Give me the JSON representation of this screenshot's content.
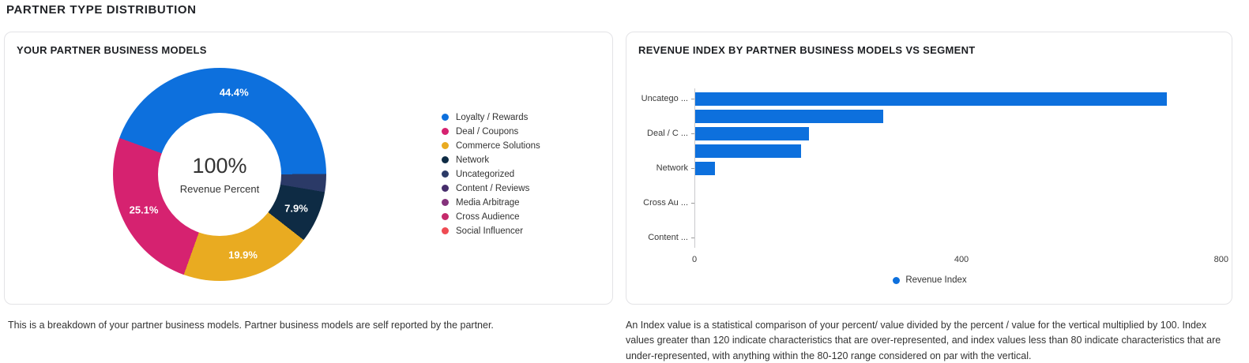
{
  "page": {
    "title": "PARTNER TYPE DISTRIBUTION"
  },
  "colors": {
    "accent_blue": "#0d70dd",
    "card_border": "#e3e3e6",
    "axis_gray": "#c9c9cc"
  },
  "left_card": {
    "title": "YOUR PARTNER BUSINESS MODELS",
    "description": "This is a breakdown of your partner business models. Partner business models are self reported by the partner."
  },
  "right_card": {
    "title": "REVENUE INDEX BY PARTNER BUSINESS MODELS VS SEGMENT",
    "description": "An Index value is a statistical comparison of your percent/ value divided by the percent / value for the vertical multiplied by 100. Index values greater than 120 indicate characteristics that are over-represented, and index values less than 80 indicate characteristics that are under-represented, with anything within the 80-120 range considered on par with the vertical."
  },
  "chart_data": [
    {
      "type": "pie",
      "title": "YOUR PARTNER BUSINESS MODELS",
      "center_value": "100%",
      "center_label": "Revenue Percent",
      "start_angle": -70,
      "slices": [
        {
          "label": "Loyalty / Rewards",
          "value": 44.4,
          "display": "44.4%",
          "color": "#0d70dd"
        },
        {
          "label": "Uncategorized",
          "value": 2.7,
          "display": "",
          "color": "#2b3a67"
        },
        {
          "label": "Network",
          "value": 7.9,
          "display": "7.9%",
          "color": "#0e2b44"
        },
        {
          "label": "Commerce Solutions",
          "value": 19.9,
          "display": "19.9%",
          "color": "#e9ab21"
        },
        {
          "label": "Deal / Coupons",
          "value": 25.1,
          "display": "25.1%",
          "color": "#d62270"
        }
      ],
      "legend": [
        {
          "label": "Loyalty / Rewards",
          "color": "#0d70dd"
        },
        {
          "label": "Deal / Coupons",
          "color": "#d62270"
        },
        {
          "label": "Commerce Solutions",
          "color": "#e9ab21"
        },
        {
          "label": "Network",
          "color": "#0e2b44"
        },
        {
          "label": "Uncategorized",
          "color": "#2b3a67"
        },
        {
          "label": "Content / Reviews",
          "color": "#462d6b"
        },
        {
          "label": "Media Arbitrage",
          "color": "#85327c"
        },
        {
          "label": "Cross Audience",
          "color": "#c52a6b"
        },
        {
          "label": "Social Influencer",
          "color": "#ef4b53"
        }
      ]
    },
    {
      "type": "bar",
      "orientation": "horizontal",
      "title": "REVENUE INDEX BY PARTNER BUSINESS MODELS VS SEGMENT",
      "categories": [
        "Uncatego ...",
        "",
        "Deal / C ...",
        "",
        "Network",
        "",
        "Cross Au ...",
        "",
        "Content ..."
      ],
      "values": [
        707,
        282,
        170,
        158,
        30,
        0,
        0,
        0,
        0
      ],
      "xlim": [
        0,
        800
      ],
      "x_ticks": [
        0,
        400,
        800
      ],
      "bar_color": "#0d70dd",
      "legend": [
        {
          "label": "Revenue Index",
          "color": "#0d70dd"
        }
      ],
      "legend_position": "bottom"
    }
  ]
}
